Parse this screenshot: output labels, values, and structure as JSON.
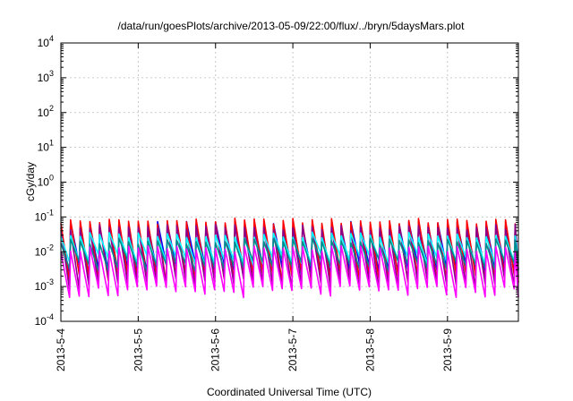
{
  "chart_data": {
    "type": "line",
    "title": "/data/run/goesPlots/archive/2013-05-09/22:00/flux/../bryn/5daysMars.plot",
    "xlabel": "Coordinated Universal Time (UTC)",
    "ylabel": "cGy/day",
    "yscale": "log",
    "ylim": [
      0.0001,
      10000
    ],
    "xlim": [
      "2013-05-04T00:00",
      "2013-05-09T22:00"
    ],
    "grid": true,
    "y_ticks": [
      {
        "value": 0.0001,
        "base": "10",
        "exp": "-4"
      },
      {
        "value": 0.001,
        "base": "10",
        "exp": "-3"
      },
      {
        "value": 0.01,
        "base": "10",
        "exp": "-2"
      },
      {
        "value": 0.1,
        "base": "10",
        "exp": "-1"
      },
      {
        "value": 1,
        "base": "10",
        "exp": "0"
      },
      {
        "value": 10,
        "base": "10",
        "exp": "1"
      },
      {
        "value": 100,
        "base": "10",
        "exp": "2"
      },
      {
        "value": 1000,
        "base": "10",
        "exp": "3"
      },
      {
        "value": 10000,
        "base": "10",
        "exp": "4"
      }
    ],
    "x_ticks": [
      {
        "value": "2013-05-04T00:00",
        "label": "2013-5-4"
      },
      {
        "value": "2013-05-05T00:00",
        "label": "2013-5-5"
      },
      {
        "value": "2013-05-06T00:00",
        "label": "2013-5-6"
      },
      {
        "value": "2013-05-07T00:00",
        "label": "2013-5-7"
      },
      {
        "value": "2013-05-08T00:00",
        "label": "2013-5-8"
      },
      {
        "value": "2013-05-09T00:00",
        "label": "2013-5-9"
      }
    ],
    "series": [
      {
        "color": "#0000ff",
        "peak": 0.06,
        "trough": 0.003
      },
      {
        "color": "#ff0000",
        "peak": 0.075,
        "trough": 0.0018
      },
      {
        "color": "#8b008b",
        "peak": 0.05,
        "trough": 0.0012
      },
      {
        "color": "#00ffff",
        "peak": 0.03,
        "trough": 0.006
      },
      {
        "color": "#008b8b",
        "peak": 0.02,
        "trough": 0.004
      },
      {
        "color": "#ff00ff",
        "peak": 0.012,
        "trough": 0.0007
      }
    ]
  }
}
